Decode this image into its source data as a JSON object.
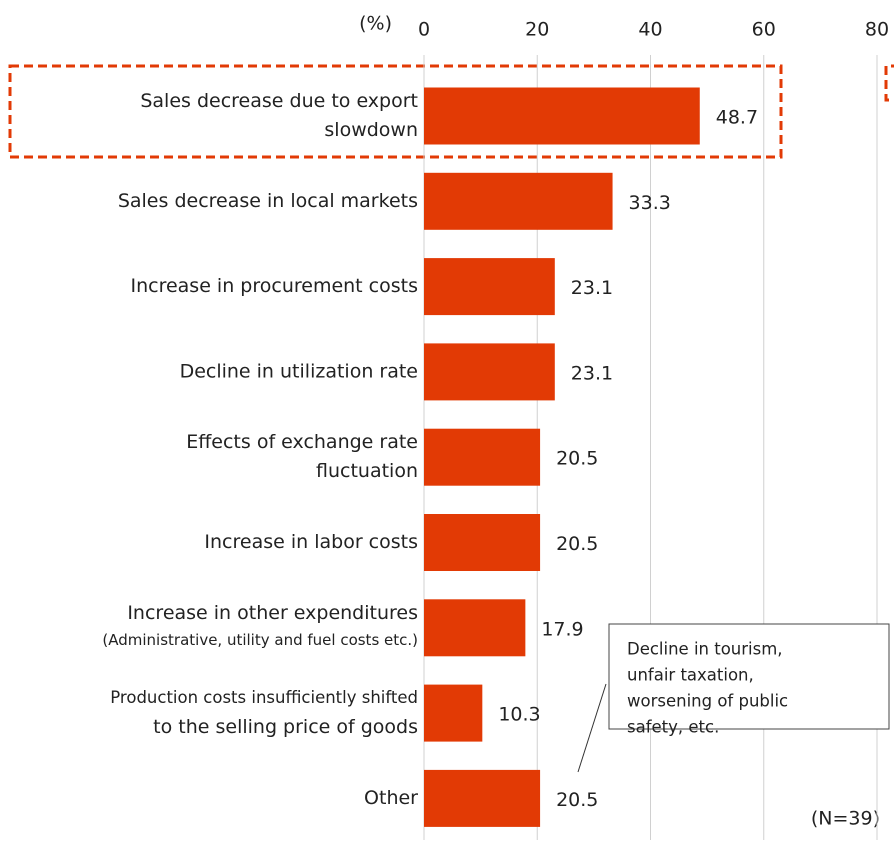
{
  "chart_data": {
    "type": "bar",
    "orientation": "horizontal",
    "axis_unit": "(%)",
    "categories": [
      [
        "Sales decrease due to export",
        "slowdown"
      ],
      [
        "Sales decrease in local markets"
      ],
      [
        "Increase in procurement costs"
      ],
      [
        "Decline in utilization rate"
      ],
      [
        "Effects of exchange rate",
        "fluctuation"
      ],
      [
        "Increase in labor costs"
      ],
      [
        "Increase in other expenditures"
      ],
      [
        "Production costs insufficiently shifted",
        "to the selling price of goods"
      ],
      [
        "Other"
      ]
    ],
    "category_notes": [
      null,
      null,
      null,
      null,
      null,
      null,
      "(Administrative, utility and fuel costs etc.)",
      null,
      null
    ],
    "values": [
      48.7,
      33.3,
      23.1,
      23.1,
      20.5,
      20.5,
      17.9,
      10.3,
      20.5
    ],
    "color": "#e23a05",
    "xlim": [
      0,
      80
    ],
    "xticks": [
      0,
      20,
      40,
      60,
      80
    ],
    "grid": true,
    "annotation": [
      "Decline in tourism,",
      "unfair taxation,",
      "worsening of public",
      "safety, etc."
    ],
    "footnote": "(N=39)"
  }
}
